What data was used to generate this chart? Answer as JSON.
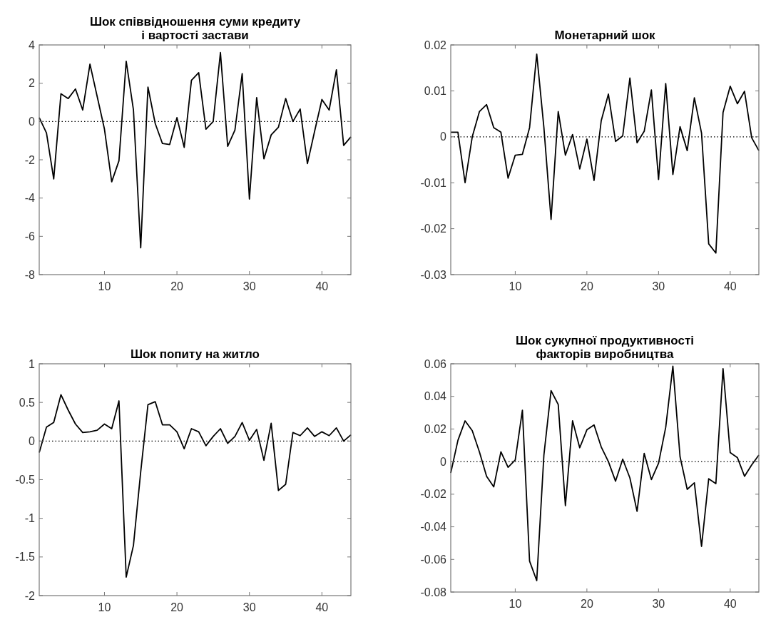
{
  "chart_data": [
    {
      "type": "line",
      "title": "Шок співвідношення суми кредиту\nі вартості застави",
      "x": [
        1,
        2,
        3,
        4,
        5,
        6,
        7,
        8,
        9,
        10,
        11,
        12,
        13,
        14,
        15,
        16,
        17,
        18,
        19,
        20,
        21,
        22,
        23,
        24,
        25,
        26,
        27,
        28,
        29,
        30,
        31,
        32,
        33,
        34,
        35,
        36,
        37,
        38,
        39,
        40,
        41,
        42,
        43,
        44
      ],
      "series": [
        {
          "color": "#000000",
          "values": [
            0.2,
            -0.6,
            -3.0,
            1.45,
            1.2,
            1.7,
            0.6,
            3.0,
            1.3,
            -0.4,
            -3.15,
            -2.05,
            3.15,
            0.6,
            -6.6,
            1.8,
            -0.1,
            -1.15,
            -1.2,
            0.2,
            -1.35,
            2.15,
            2.55,
            -0.4,
            0.0,
            3.6,
            -1.3,
            -0.45,
            2.5,
            -4.05,
            1.25,
            -1.95,
            -0.7,
            -0.3,
            1.2,
            0.0,
            0.65,
            -2.2,
            -0.5,
            1.15,
            0.6,
            2.7,
            -1.25,
            -0.8
          ]
        }
      ],
      "xlim": [
        1,
        44
      ],
      "xticks": [
        10,
        20,
        30,
        40
      ],
      "ylim": [
        -8,
        4
      ],
      "yticks": [
        -8,
        -6,
        -4,
        -2,
        0,
        2,
        4
      ],
      "grid": false,
      "marker": "none",
      "line_style": "solid",
      "ref_lines": [
        {
          "axis": "y",
          "value": 0,
          "line_style": "dotted",
          "color": "#000000"
        }
      ]
    },
    {
      "type": "line",
      "title": "Монетарний шок",
      "x": [
        1,
        2,
        3,
        4,
        5,
        6,
        7,
        8,
        9,
        10,
        11,
        12,
        13,
        14,
        15,
        16,
        17,
        18,
        19,
        20,
        21,
        22,
        23,
        24,
        25,
        26,
        27,
        28,
        29,
        30,
        31,
        32,
        33,
        34,
        35,
        36,
        37,
        38,
        39,
        40,
        41,
        42,
        43,
        44
      ],
      "series": [
        {
          "color": "#000000",
          "values": [
            0.001,
            0.001,
            -0.01,
            0.0,
            0.0055,
            0.007,
            0.002,
            0.001,
            -0.009,
            -0.004,
            -0.0038,
            0.002,
            0.018,
            0.002,
            -0.018,
            0.0055,
            -0.004,
            0.0005,
            -0.007,
            -0.0005,
            -0.0095,
            0.0035,
            0.0093,
            -0.001,
            0.0002,
            0.0128,
            -0.0013,
            0.0012,
            0.0102,
            -0.0093,
            0.0116,
            -0.0082,
            0.0022,
            -0.003,
            0.0085,
            0.0008,
            -0.0233,
            -0.0253,
            0.0053,
            0.011,
            0.0072,
            0.0099,
            -0.0002,
            -0.003
          ]
        }
      ],
      "xlim": [
        1,
        44
      ],
      "xticks": [
        10,
        20,
        30,
        40
      ],
      "ylim": [
        -0.03,
        0.02
      ],
      "yticks": [
        -0.03,
        -0.02,
        -0.01,
        0,
        0.01,
        0.02
      ],
      "grid": false,
      "marker": "none",
      "line_style": "solid",
      "ref_lines": [
        {
          "axis": "y",
          "value": 0,
          "line_style": "dotted",
          "color": "#000000"
        }
      ]
    },
    {
      "type": "line",
      "title": "Шок попиту на житло",
      "x": [
        1,
        2,
        3,
        4,
        5,
        6,
        7,
        8,
        9,
        10,
        11,
        12,
        13,
        14,
        15,
        16,
        17,
        18,
        19,
        20,
        21,
        22,
        23,
        24,
        25,
        26,
        27,
        28,
        29,
        30,
        31,
        32,
        33,
        34,
        35,
        36,
        37,
        38,
        39,
        40,
        41,
        42,
        43,
        44
      ],
      "series": [
        {
          "color": "#000000",
          "values": [
            -0.15,
            0.18,
            0.24,
            0.6,
            0.4,
            0.22,
            0.11,
            0.12,
            0.14,
            0.22,
            0.16,
            0.52,
            -1.76,
            -1.35,
            -0.4,
            0.47,
            0.51,
            0.21,
            0.21,
            0.12,
            -0.1,
            0.16,
            0.12,
            -0.06,
            0.06,
            0.16,
            -0.03,
            0.06,
            0.24,
            0.01,
            0.15,
            -0.25,
            0.23,
            -0.64,
            -0.56,
            0.11,
            0.07,
            0.17,
            0.06,
            0.12,
            0.07,
            0.17,
            0.0,
            0.08
          ]
        }
      ],
      "xlim": [
        1,
        44
      ],
      "xticks": [
        10,
        20,
        30,
        40
      ],
      "ylim": [
        -2,
        1
      ],
      "yticks": [
        -2,
        -1.5,
        -1,
        -0.5,
        0,
        0.5,
        1
      ],
      "grid": false,
      "marker": "none",
      "line_style": "solid",
      "ref_lines": [
        {
          "axis": "y",
          "value": 0,
          "line_style": "dotted",
          "color": "#000000"
        }
      ]
    },
    {
      "type": "line",
      "title": "Шок сукупної продуктивності\nфакторів виробництва",
      "x": [
        1,
        2,
        3,
        4,
        5,
        6,
        7,
        8,
        9,
        10,
        11,
        12,
        13,
        14,
        15,
        16,
        17,
        18,
        19,
        20,
        21,
        22,
        23,
        24,
        25,
        26,
        27,
        28,
        29,
        30,
        31,
        32,
        33,
        34,
        35,
        36,
        37,
        38,
        39,
        40,
        41,
        42,
        43,
        44
      ],
      "series": [
        {
          "color": "#000000",
          "values": [
            -0.007,
            0.013,
            0.025,
            0.019,
            0.006,
            -0.009,
            -0.0155,
            0.006,
            -0.0035,
            0.001,
            0.0315,
            -0.061,
            -0.073,
            0.004,
            0.0435,
            0.035,
            -0.027,
            0.025,
            0.0085,
            0.0195,
            0.0225,
            0.009,
            0.0,
            -0.012,
            0.0015,
            -0.01,
            -0.0305,
            0.005,
            -0.011,
            -0.001,
            0.021,
            0.0585,
            0.003,
            -0.017,
            -0.013,
            -0.052,
            -0.0105,
            -0.0135,
            0.057,
            0.0055,
            0.0025,
            -0.009,
            -0.002,
            0.004
          ]
        }
      ],
      "xlim": [
        1,
        44
      ],
      "xticks": [
        10,
        20,
        30,
        40
      ],
      "ylim": [
        -0.08,
        0.06
      ],
      "yticks": [
        -0.08,
        -0.06,
        -0.04,
        -0.02,
        0,
        0.02,
        0.04,
        0.06
      ],
      "grid": false,
      "marker": "none",
      "line_style": "solid",
      "ref_lines": [
        {
          "axis": "y",
          "value": 0,
          "line_style": "dotted",
          "color": "#000000"
        }
      ]
    }
  ]
}
